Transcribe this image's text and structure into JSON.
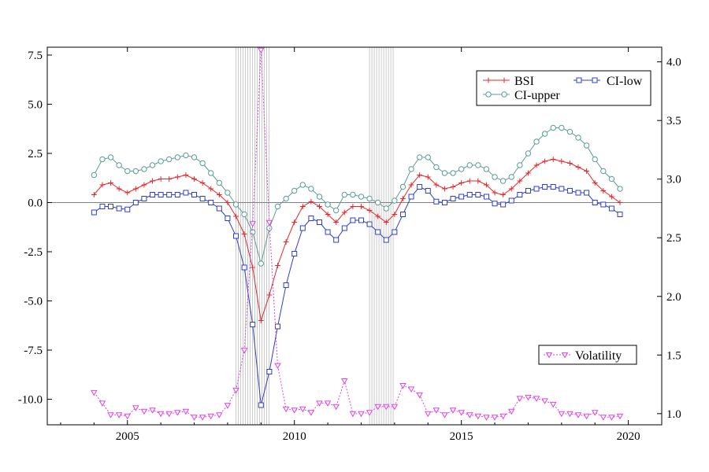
{
  "chart_data": {
    "type": "line",
    "x_ticks": [
      2005,
      2010,
      2015,
      2020
    ],
    "x_range": [
      2002.6,
      2021.0
    ],
    "left_axis": {
      "range": [
        -11.3,
        7.9
      ],
      "ticks": [
        "7.5",
        "5.0",
        "2.5",
        "0.0",
        "-2.5",
        "-5.0",
        "-7.5",
        "-10.0"
      ],
      "tick_values": [
        7.5,
        5.0,
        2.5,
        0.0,
        -2.5,
        -5.0,
        -7.5,
        -10.0
      ]
    },
    "right_axis": {
      "range": [
        0.905,
        4.125
      ],
      "ticks": [
        "4.0",
        "3.5",
        "3.0",
        "2.5",
        "2.0",
        "1.5",
        "1.0"
      ],
      "tick_values": [
        4.0,
        3.5,
        3.0,
        2.5,
        2.0,
        1.5,
        1.0
      ]
    },
    "zero_line": 0.0,
    "shaded_periods": [
      [
        2008.25,
        2009.25
      ],
      [
        2012.25,
        2013.0
      ]
    ],
    "x": [
      2004.0,
      2004.25,
      2004.5,
      2004.75,
      2005.0,
      2005.25,
      2005.5,
      2005.75,
      2006.0,
      2006.25,
      2006.5,
      2006.75,
      2007.0,
      2007.25,
      2007.5,
      2007.75,
      2008.0,
      2008.25,
      2008.5,
      2008.75,
      2009.0,
      2009.25,
      2009.5,
      2009.75,
      2010.0,
      2010.25,
      2010.5,
      2010.75,
      2011.0,
      2011.25,
      2011.5,
      2011.75,
      2012.0,
      2012.25,
      2012.5,
      2012.75,
      2013.0,
      2013.25,
      2013.5,
      2013.75,
      2014.0,
      2014.25,
      2014.5,
      2014.75,
      2015.0,
      2015.25,
      2015.5,
      2015.75,
      2016.0,
      2016.25,
      2016.5,
      2016.75,
      2017.0,
      2017.25,
      2017.5,
      2017.75,
      2018.0,
      2018.25,
      2018.5,
      2018.75,
      2019.0,
      2019.25,
      2019.5,
      2019.75
    ],
    "series": [
      {
        "name": "BSI",
        "color": "#e8252a",
        "marker": "plus",
        "axis": "left",
        "values": [
          0.4,
          0.9,
          1.0,
          0.7,
          0.5,
          0.7,
          0.9,
          1.1,
          1.2,
          1.2,
          1.3,
          1.4,
          1.2,
          1.0,
          0.7,
          0.4,
          0.0,
          -0.7,
          -1.6,
          -3.3,
          -6.0,
          -4.7,
          -3.2,
          -2.0,
          -1.0,
          -0.2,
          0.05,
          -0.2,
          -0.6,
          -1.0,
          -0.5,
          -0.2,
          -0.2,
          -0.4,
          -0.7,
          -1.0,
          -0.6,
          0.2,
          0.9,
          1.4,
          1.3,
          0.9,
          0.7,
          0.8,
          1.0,
          1.1,
          1.1,
          0.9,
          0.5,
          0.4,
          0.7,
          1.1,
          1.5,
          1.9,
          2.1,
          2.2,
          2.1,
          2.0,
          1.8,
          1.6,
          1.0,
          0.6,
          0.3,
          0.0
        ]
      },
      {
        "name": "CI-upper",
        "color": "#5a9e96",
        "marker": "circle",
        "axis": "left",
        "values": [
          1.4,
          2.2,
          2.3,
          1.9,
          1.6,
          1.6,
          1.7,
          1.9,
          2.1,
          2.2,
          2.3,
          2.4,
          2.3,
          2.0,
          1.5,
          1.0,
          0.5,
          -0.1,
          -0.6,
          -1.5,
          -3.1,
          -1.3,
          -0.2,
          0.2,
          0.6,
          0.9,
          0.7,
          0.3,
          -0.1,
          -0.4,
          0.4,
          0.4,
          0.3,
          0.2,
          0.0,
          -0.3,
          0.1,
          0.8,
          1.7,
          2.3,
          2.3,
          1.8,
          1.5,
          1.5,
          1.7,
          1.9,
          1.9,
          1.7,
          1.3,
          1.1,
          1.3,
          1.9,
          2.5,
          3.1,
          3.5,
          3.8,
          3.8,
          3.6,
          3.3,
          2.9,
          2.2,
          1.6,
          1.2,
          0.7
        ]
      },
      {
        "name": "CI-low",
        "color": "#2e3fcf",
        "marker": "square",
        "axis": "left",
        "values": [
          -0.5,
          -0.2,
          -0.2,
          -0.3,
          -0.35,
          0.0,
          0.2,
          0.4,
          0.4,
          0.4,
          0.4,
          0.5,
          0.4,
          0.2,
          0.0,
          -0.3,
          -0.8,
          -1.7,
          -3.3,
          -6.2,
          -10.3,
          -8.6,
          -6.3,
          -4.2,
          -2.6,
          -1.3,
          -0.8,
          -1.0,
          -1.5,
          -1.9,
          -1.3,
          -0.9,
          -0.9,
          -1.1,
          -1.5,
          -1.9,
          -1.5,
          -0.6,
          0.3,
          0.8,
          0.6,
          0.05,
          0.0,
          0.2,
          0.3,
          0.4,
          0.4,
          0.3,
          -0.05,
          -0.1,
          0.1,
          0.4,
          0.6,
          0.7,
          0.8,
          0.8,
          0.7,
          0.6,
          0.5,
          0.5,
          0.0,
          -0.1,
          -0.3,
          -0.6
        ]
      },
      {
        "name": "Volatility",
        "color": "#e040e8",
        "marker": "triangle-down",
        "axis": "right",
        "values": [
          1.18,
          1.09,
          0.99,
          0.99,
          0.98,
          1.05,
          1.02,
          1.03,
          1.0,
          1.0,
          1.01,
          1.02,
          0.97,
          0.97,
          0.98,
          0.99,
          1.07,
          1.2,
          1.54,
          2.62,
          4.1,
          2.63,
          1.41,
          1.04,
          1.03,
          1.04,
          1.01,
          1.09,
          1.09,
          1.06,
          1.28,
          1.0,
          1.0,
          1.01,
          1.06,
          1.06,
          1.06,
          1.24,
          1.21,
          1.16,
          1.0,
          1.03,
          0.99,
          1.03,
          1.01,
          0.99,
          0.98,
          0.97,
          0.97,
          0.98,
          1.02,
          1.13,
          1.14,
          1.13,
          1.11,
          1.08,
          1.0,
          1.0,
          0.99,
          0.98,
          1.01,
          0.97,
          0.97,
          0.98
        ]
      }
    ],
    "legend": {
      "placement": [
        "top-right",
        "bottom-right"
      ],
      "entries": [
        "BSI",
        "CI-upper",
        "CI-low",
        "Volatility"
      ]
    },
    "grid": false
  }
}
